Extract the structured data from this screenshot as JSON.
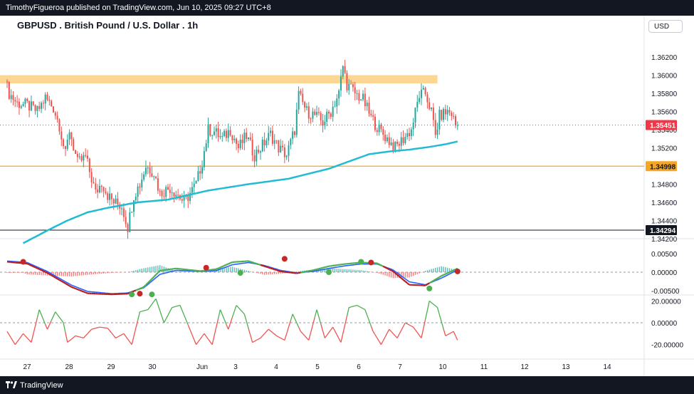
{
  "header": {
    "publisher_line": "TimothyFigueroa published on TradingView.com, Jun 10, 2025 09:27 UTC+8"
  },
  "chart": {
    "title": "GBPUSD . British Pound / U.S. Dollar . 1h",
    "currency_button": "USD"
  },
  "footer": {
    "brand": "TradingView",
    "logo_icon": "tradingview-logo-icon"
  },
  "colors": {
    "up": "#26a69a",
    "down": "#ef5350",
    "ma": "#22bcd2",
    "resistance_zone": "#fcd693",
    "support_line": "#f5a623",
    "price_label": "#f23645",
    "support_label": "#f5a623",
    "low_label": "#131722"
  },
  "chart_data": [
    {
      "type": "candlestick",
      "ylim": [
        1.3415,
        1.3627
      ],
      "x_tick_labels": [
        "27",
        "28",
        "29",
        "30",
        "Jun",
        "3",
        "4",
        "5",
        "6",
        "7",
        "10",
        "11",
        "12",
        "13",
        "14"
      ],
      "y_tick_labels": [
        "1.36200",
        "1.36000",
        "1.35800",
        "1.35600",
        "1.35400",
        "1.35200",
        "1.34800",
        "1.34600",
        "1.34400",
        "1.34200"
      ],
      "y_ticks": [
        1.362,
        1.36,
        1.358,
        1.356,
        1.354,
        1.352,
        1.348,
        1.346,
        1.344,
        1.342
      ],
      "current_price": 1.35451,
      "current_price_label": "1.35451",
      "support_level": 1.34998,
      "support_label": "1.34998",
      "low_level": 1.34294,
      "low_label": "1.34294",
      "resistance_zone": [
        1.3591,
        1.36
      ],
      "series": [
        {
          "name": "",
          "anchors": [
            [
              0,
              1.3593
            ],
            [
              2,
              1.358
            ],
            [
              6,
              1.3569
            ],
            [
              11,
              1.3567
            ],
            [
              16,
              1.356
            ],
            [
              20,
              1.3575
            ],
            [
              24,
              1.3564
            ],
            [
              27,
              1.3545
            ],
            [
              30,
              1.3512
            ],
            [
              32,
              1.354
            ],
            [
              36,
              1.3503
            ],
            [
              40,
              1.351
            ],
            [
              45,
              1.347
            ],
            [
              48,
              1.3482
            ],
            [
              51,
              1.3468
            ],
            [
              54,
              1.346
            ],
            [
              58,
              1.3456
            ],
            [
              61,
              1.3433
            ],
            [
              64,
              1.3468
            ],
            [
              67,
              1.348
            ],
            [
              70,
              1.35
            ],
            [
              74,
              1.3493
            ],
            [
              77,
              1.347
            ],
            [
              82,
              1.3476
            ],
            [
              86,
              1.3468
            ],
            [
              89,
              1.346
            ],
            [
              92,
              1.347
            ],
            [
              95,
              1.348
            ],
            [
              98,
              1.3505
            ],
            [
              101,
              1.354
            ],
            [
              104,
              1.3538
            ],
            [
              108,
              1.353
            ],
            [
              112,
              1.354
            ],
            [
              116,
              1.352
            ],
            [
              120,
              1.3533
            ],
            [
              124,
              1.3512
            ],
            [
              128,
              1.3523
            ],
            [
              132,
              1.3535
            ],
            [
              136,
              1.352
            ],
            [
              140,
              1.3512
            ],
            [
              144,
              1.354
            ],
            [
              146,
              1.3578
            ],
            [
              150,
              1.356
            ],
            [
              154,
              1.3556
            ],
            [
              158,
              1.3548
            ],
            [
              162,
              1.356
            ],
            [
              166,
              1.358
            ],
            [
              168,
              1.361
            ],
            [
              170,
              1.359
            ],
            [
              174,
              1.358
            ],
            [
              178,
              1.3573
            ],
            [
              182,
              1.3553
            ],
            [
              186,
              1.354
            ],
            [
              190,
              1.353
            ],
            [
              194,
              1.352
            ],
            [
              198,
              1.353
            ],
            [
              202,
              1.354
            ],
            [
              206,
              1.3578
            ],
            [
              209,
              1.358
            ],
            [
              212,
              1.356
            ],
            [
              214,
              1.3533
            ],
            [
              216,
              1.3555
            ],
            [
              220,
              1.356
            ],
            [
              222,
              1.3558
            ],
            [
              224,
              1.3545
            ]
          ]
        },
        {
          "name": "",
          "anchors": [
            [
              8,
              1.3415
            ],
            [
              20,
              1.3429
            ],
            [
              30,
              1.344
            ],
            [
              40,
              1.3449
            ],
            [
              50,
              1.3454
            ],
            [
              65,
              1.346
            ],
            [
              80,
              1.3463
            ],
            [
              100,
              1.3473
            ],
            [
              120,
              1.348
            ],
            [
              140,
              1.3486
            ],
            [
              160,
              1.3497
            ],
            [
              170,
              1.3505
            ],
            [
              180,
              1.3513
            ],
            [
              190,
              1.3516
            ],
            [
              200,
              1.3518
            ],
            [
              210,
              1.3521
            ],
            [
              218,
              1.3524
            ],
            [
              224,
              1.3527
            ]
          ]
        }
      ]
    },
    {
      "type": "line",
      "y_tick_labels": [
        "0.00500",
        "0.00000",
        "-0.00500"
      ],
      "y_ticks": [
        0.005,
        0,
        -0.005
      ],
      "ylim": [
        -0.0058,
        0.0078
      ],
      "series": [
        {
          "name": "",
          "anchors": [
            [
              0,
              0.0028
            ],
            [
              8,
              0.0025
            ],
            [
              20,
              -0.0008
            ],
            [
              32,
              -0.0048
            ],
            [
              40,
              -0.006
            ],
            [
              52,
              -0.006
            ],
            [
              60,
              -0.0056
            ],
            [
              68,
              -0.003
            ],
            [
              76,
              0.0015
            ],
            [
              84,
              0.0008
            ],
            [
              96,
              0.0002
            ],
            [
              104,
              0.0016
            ],
            [
              112,
              0.0036
            ],
            [
              120,
              0.003
            ],
            [
              128,
              0.001
            ],
            [
              136,
              0.0
            ],
            [
              144,
              0.0
            ],
            [
              152,
              0.001
            ],
            [
              160,
              0.0022
            ],
            [
              168,
              0.0026
            ],
            [
              176,
              0.0028
            ],
            [
              184,
              0.002
            ],
            [
              192,
              -0.0012
            ],
            [
              200,
              -0.0042
            ],
            [
              208,
              -0.003
            ],
            [
              216,
              0.0002
            ],
            [
              224,
              0.0012
            ]
          ]
        },
        {
          "name": "",
          "anchors": [
            [
              0,
              0.0028
            ],
            [
              10,
              0.0023
            ],
            [
              20,
              -0.0002
            ],
            [
              32,
              -0.004
            ],
            [
              40,
              -0.0057
            ],
            [
              52,
              -0.006
            ],
            [
              60,
              -0.0058
            ],
            [
              68,
              -0.004
            ],
            [
              76,
              0.0004
            ],
            [
              84,
              0.001
            ],
            [
              96,
              0.0003
            ],
            [
              104,
              0.0008
            ],
            [
              112,
              0.0027
            ],
            [
              120,
              0.003
            ],
            [
              128,
              0.0016
            ],
            [
              136,
              0.0002
            ],
            [
              144,
              -0.0003
            ],
            [
              152,
              0.0005
            ],
            [
              160,
              0.0016
            ],
            [
              168,
              0.0022
            ],
            [
              176,
              0.0026
            ],
            [
              184,
              0.0024
            ],
            [
              192,
              0.0002
            ],
            [
              200,
              -0.0034
            ],
            [
              208,
              -0.0036
            ],
            [
              216,
              -0.001
            ],
            [
              224,
              0.001
            ]
          ]
        },
        {
          "name": "",
          "anchors": [
            [
              0,
              0.003
            ],
            [
              10,
              0.0026
            ],
            [
              20,
              0.0002
            ],
            [
              32,
              -0.0035
            ],
            [
              40,
              -0.0052
            ],
            [
              52,
              -0.0058
            ],
            [
              60,
              -0.0056
            ],
            [
              68,
              -0.0042
            ],
            [
              76,
              -0.0006
            ],
            [
              84,
              0.0005
            ],
            [
              96,
              0.0002
            ],
            [
              104,
              0.0004
            ],
            [
              112,
              0.002
            ],
            [
              120,
              0.0026
            ],
            [
              128,
              0.0018
            ],
            [
              136,
              0.0005
            ],
            [
              144,
              -0.0002
            ],
            [
              152,
              0.0002
            ],
            [
              160,
              0.001
            ],
            [
              168,
              0.0017
            ],
            [
              176,
              0.0022
            ],
            [
              184,
              0.0022
            ],
            [
              192,
              0.0006
            ],
            [
              200,
              -0.0026
            ],
            [
              208,
              -0.0034
            ],
            [
              216,
              -0.0016
            ],
            [
              224,
              0.0006
            ]
          ]
        }
      ],
      "signals": [
        {
          "i": 8,
          "v": 0.0028,
          "kind": "sell"
        },
        {
          "i": 62,
          "v": -0.006,
          "kind": "buy"
        },
        {
          "i": 66,
          "v": -0.0058,
          "kind": "sell"
        },
        {
          "i": 72,
          "v": -0.006,
          "kind": "buy"
        },
        {
          "i": 99,
          "v": 0.0012,
          "kind": "sell"
        },
        {
          "i": 116,
          "v": -0.0002,
          "kind": "buy"
        },
        {
          "i": 138,
          "v": 0.0036,
          "kind": "sell"
        },
        {
          "i": 160,
          "v": 0.0,
          "kind": "buy"
        },
        {
          "i": 176,
          "v": 0.0028,
          "kind": "buy"
        },
        {
          "i": 181,
          "v": 0.0026,
          "kind": "sell"
        },
        {
          "i": 210,
          "v": -0.0044,
          "kind": "buy"
        },
        {
          "i": 224,
          "v": 0.0002,
          "kind": "sell"
        }
      ]
    },
    {
      "type": "line",
      "y_tick_labels": [
        "20.00000",
        "0.00000",
        "-20.00000"
      ],
      "y_ticks": [
        20,
        0,
        -20
      ],
      "ylim": [
        -27,
        26
      ],
      "series": [
        {
          "name": "",
          "anchors": [
            [
              0,
              -8
            ],
            [
              4,
              -20
            ],
            [
              8,
              -10
            ],
            [
              12,
              -18
            ],
            [
              16,
              12
            ],
            [
              20,
              -6
            ],
            [
              24,
              10
            ],
            [
              28,
              0
            ],
            [
              30,
              -18
            ],
            [
              34,
              -12
            ],
            [
              38,
              -14
            ],
            [
              42,
              -6
            ],
            [
              46,
              -4
            ],
            [
              50,
              -5
            ],
            [
              54,
              -14
            ],
            [
              58,
              -10
            ],
            [
              62,
              -20
            ],
            [
              66,
              10
            ],
            [
              70,
              12
            ],
            [
              74,
              22
            ],
            [
              78,
              0
            ],
            [
              82,
              14
            ],
            [
              86,
              16
            ],
            [
              90,
              -2
            ],
            [
              94,
              -20
            ],
            [
              98,
              -10
            ],
            [
              102,
              -20
            ],
            [
              106,
              12
            ],
            [
              110,
              -6
            ],
            [
              114,
              16
            ],
            [
              118,
              8
            ],
            [
              122,
              -18
            ],
            [
              126,
              -14
            ],
            [
              130,
              -6
            ],
            [
              134,
              -12
            ],
            [
              138,
              -16
            ],
            [
              142,
              8
            ],
            [
              146,
              -8
            ],
            [
              150,
              -16
            ],
            [
              154,
              12
            ],
            [
              158,
              -14
            ],
            [
              162,
              -4
            ],
            [
              166,
              -18
            ],
            [
              170,
              14
            ],
            [
              174,
              16
            ],
            [
              178,
              12
            ],
            [
              182,
              -8
            ],
            [
              186,
              -20
            ],
            [
              190,
              -6
            ],
            [
              194,
              -14
            ],
            [
              198,
              0
            ],
            [
              202,
              -4
            ],
            [
              206,
              -14
            ],
            [
              210,
              20
            ],
            [
              214,
              14
            ],
            [
              218,
              -12
            ],
            [
              222,
              -8
            ],
            [
              224,
              -16
            ]
          ]
        }
      ]
    }
  ]
}
